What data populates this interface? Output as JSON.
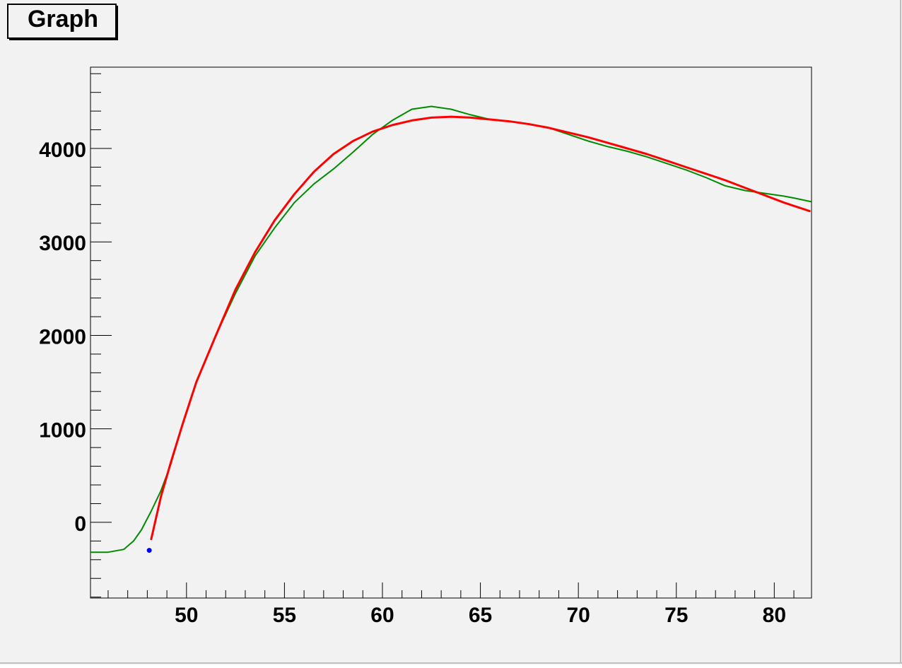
{
  "title": "Graph",
  "colors": {
    "canvas_background": "#f2f2f2",
    "frame": "#000000",
    "title_box_background": "#f2f2f2",
    "series_green": "#008c00",
    "series_red": "#ff0000",
    "point_blue": "#0000ff"
  },
  "chart_data": {
    "type": "line",
    "title": "Graph",
    "xlabel": "",
    "ylabel": "",
    "xlim": [
      45.1,
      81.9
    ],
    "ylim": [
      -810,
      4870
    ],
    "grid": false,
    "legend": "none",
    "x_ticks": [
      50,
      55,
      60,
      65,
      70,
      75,
      80
    ],
    "x_tick_labels": [
      "50",
      "55",
      "60",
      "65",
      "70",
      "75",
      "80"
    ],
    "y_ticks": [
      0,
      1000,
      2000,
      3000,
      4000
    ],
    "y_tick_labels": [
      "0",
      "1000",
      "2000",
      "3000",
      "4000"
    ],
    "series": [
      {
        "color": "#008c00",
        "points": [
          [
            45.1,
            -320
          ],
          [
            46.0,
            -320
          ],
          [
            46.8,
            -290
          ],
          [
            47.3,
            -200
          ],
          [
            47.7,
            -80
          ],
          [
            48.2,
            120
          ],
          [
            48.7,
            340
          ],
          [
            49.2,
            620
          ],
          [
            49.8,
            1050
          ],
          [
            50.5,
            1500
          ],
          [
            51.5,
            2000
          ],
          [
            52.5,
            2450
          ],
          [
            53.5,
            2850
          ],
          [
            54.5,
            3150
          ],
          [
            55.5,
            3420
          ],
          [
            56.5,
            3620
          ],
          [
            57.5,
            3780
          ],
          [
            58.5,
            3960
          ],
          [
            59.5,
            4150
          ],
          [
            60.5,
            4300
          ],
          [
            61.5,
            4420
          ],
          [
            62.5,
            4450
          ],
          [
            63.5,
            4420
          ],
          [
            64.5,
            4360
          ],
          [
            65.5,
            4310
          ],
          [
            66.5,
            4290
          ],
          [
            67.5,
            4260
          ],
          [
            68.5,
            4220
          ],
          [
            69.5,
            4150
          ],
          [
            70.5,
            4080
          ],
          [
            71.5,
            4020
          ],
          [
            72.5,
            3970
          ],
          [
            73.5,
            3910
          ],
          [
            74.5,
            3840
          ],
          [
            75.5,
            3770
          ],
          [
            76.5,
            3690
          ],
          [
            77.5,
            3600
          ],
          [
            78.5,
            3550
          ],
          [
            79.5,
            3520
          ],
          [
            80.5,
            3490
          ],
          [
            81.0,
            3470
          ],
          [
            81.9,
            3430
          ]
        ]
      },
      {
        "color": "#ff0000",
        "points": [
          [
            48.2,
            -180
          ],
          [
            48.7,
            280
          ],
          [
            49.2,
            640
          ],
          [
            49.8,
            1050
          ],
          [
            50.5,
            1500
          ],
          [
            51.5,
            2000
          ],
          [
            52.5,
            2490
          ],
          [
            53.5,
            2890
          ],
          [
            54.5,
            3230
          ],
          [
            55.5,
            3510
          ],
          [
            56.5,
            3750
          ],
          [
            57.5,
            3940
          ],
          [
            58.5,
            4080
          ],
          [
            59.5,
            4180
          ],
          [
            60.5,
            4250
          ],
          [
            61.5,
            4300
          ],
          [
            62.5,
            4330
          ],
          [
            63.5,
            4340
          ],
          [
            64.5,
            4330
          ],
          [
            65.5,
            4310
          ],
          [
            66.5,
            4290
          ],
          [
            67.5,
            4260
          ],
          [
            68.5,
            4220
          ],
          [
            69.5,
            4170
          ],
          [
            70.5,
            4120
          ],
          [
            71.5,
            4060
          ],
          [
            72.5,
            4000
          ],
          [
            73.5,
            3940
          ],
          [
            74.5,
            3870
          ],
          [
            75.5,
            3800
          ],
          [
            76.5,
            3730
          ],
          [
            77.5,
            3660
          ],
          [
            78.5,
            3580
          ],
          [
            79.5,
            3500
          ],
          [
            80.5,
            3420
          ],
          [
            81.8,
            3330
          ]
        ]
      }
    ],
    "marker_points": [
      {
        "color": "#0000ff",
        "x": 48.1,
        "y": -300
      }
    ]
  }
}
